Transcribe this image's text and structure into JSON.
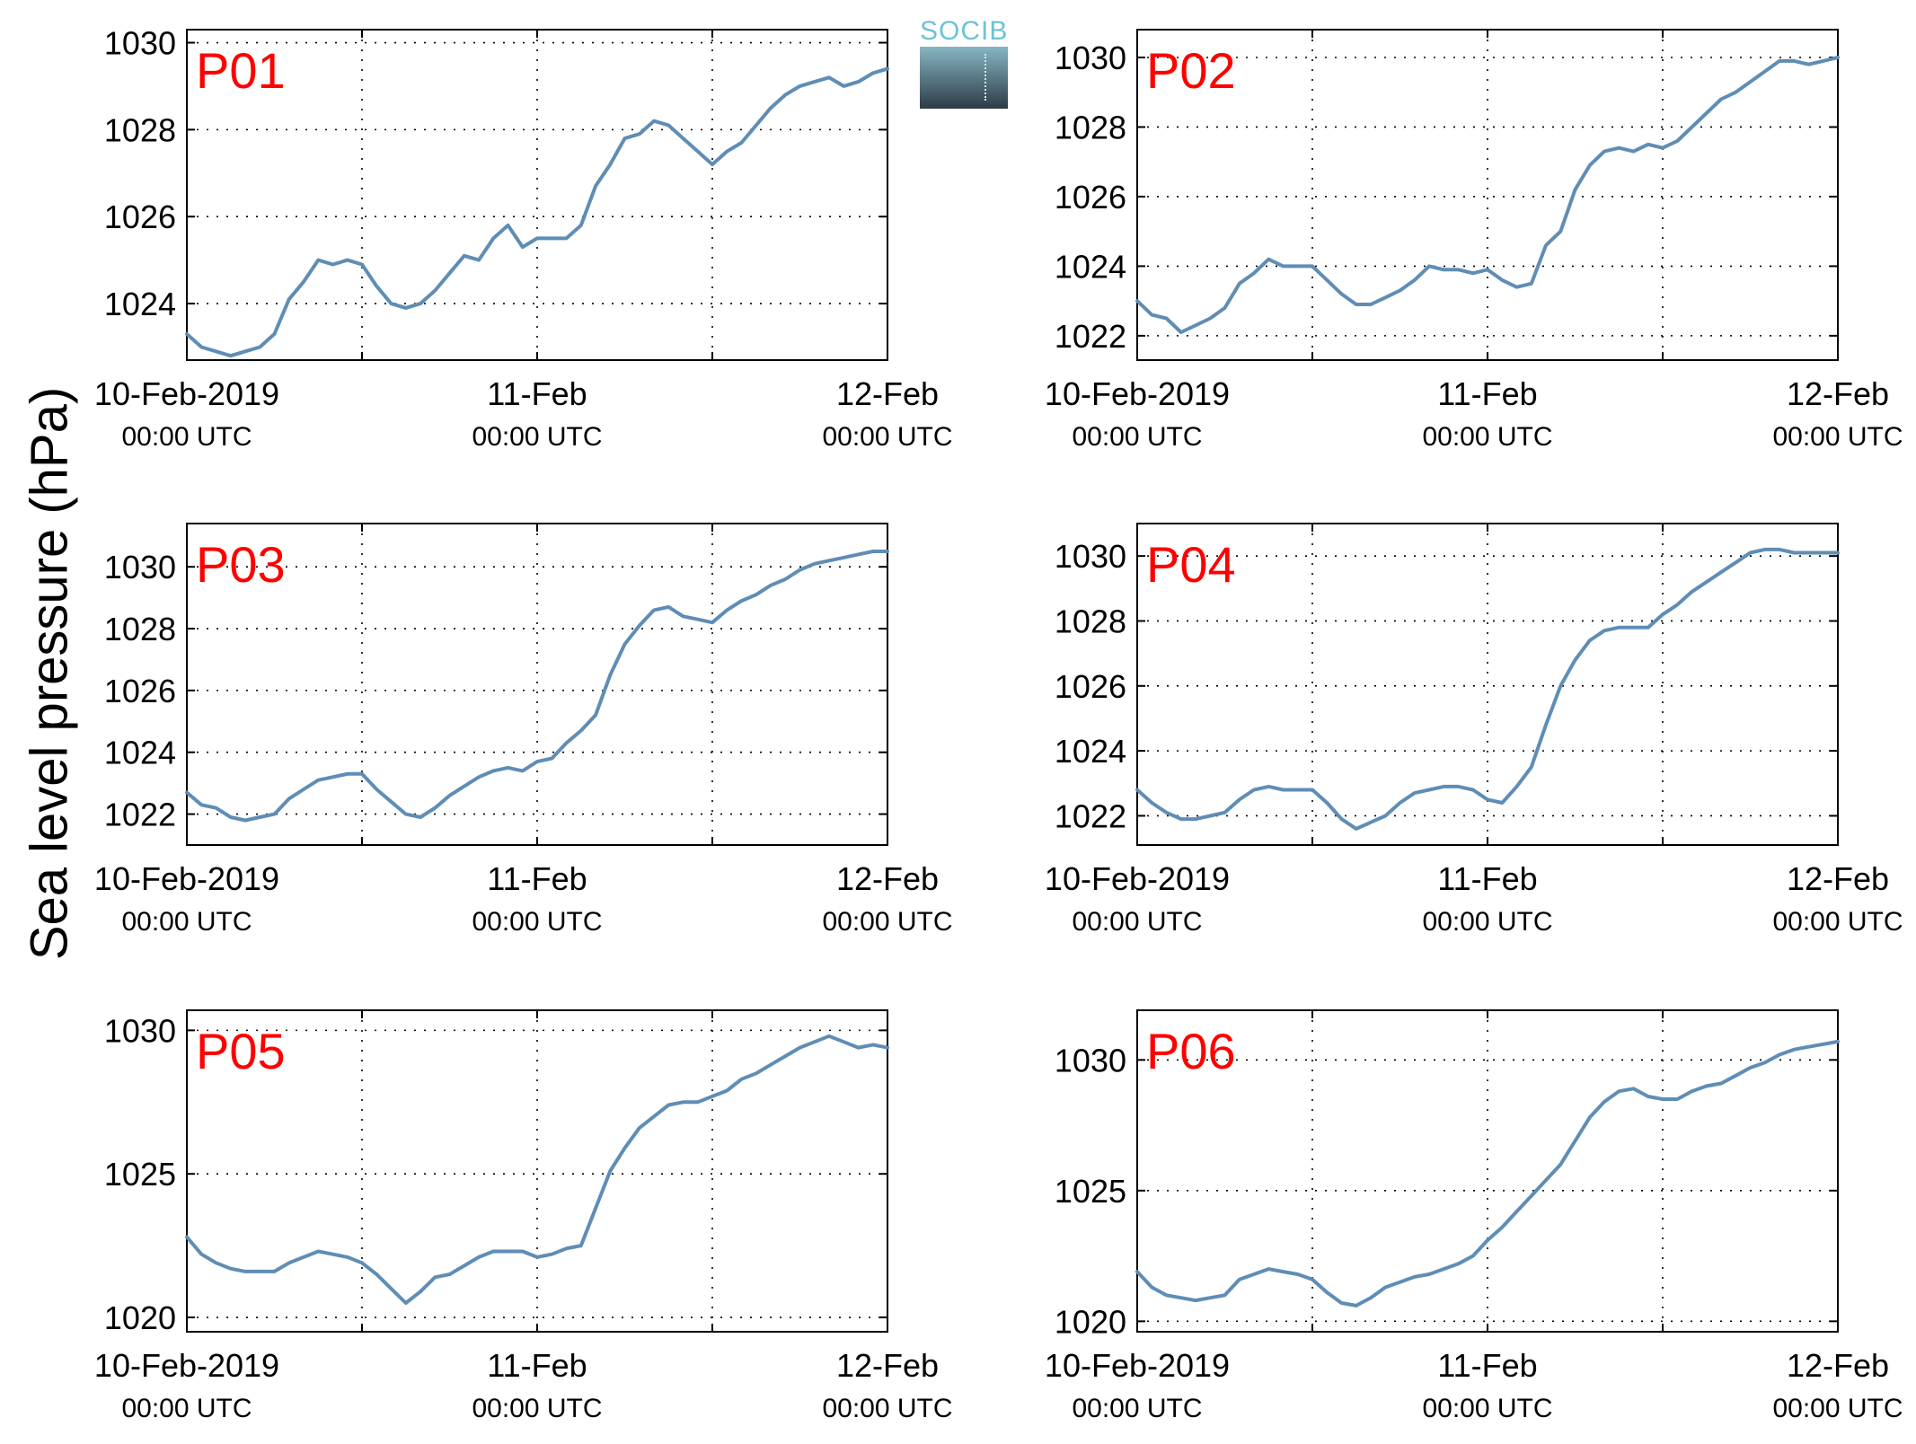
{
  "ylabel": "Sea level pressure (hPa)",
  "logo_text": "SOCIB",
  "x_tick_labels": [
    {
      "line1": "10-Feb-2019",
      "line2": "00:00 UTC"
    },
    {
      "line1": "11-Feb",
      "line2": "00:00 UTC"
    },
    {
      "line1": "12-Feb",
      "line2": "00:00 UTC"
    }
  ],
  "colors": {
    "line": "#5f8db5",
    "panel_label": "#ff0000",
    "grid": "#000000"
  },
  "chart_data": [
    {
      "type": "line",
      "title": "P01",
      "x_unit": "hours since 10-Feb-2019 00:00 UTC",
      "xlim": [
        0,
        48
      ],
      "ylim": [
        1022.7,
        1030.3
      ],
      "yticks": [
        1024,
        1026,
        1028,
        1030
      ],
      "x": [
        0,
        1,
        2,
        3,
        4,
        5,
        6,
        7,
        8,
        9,
        10,
        11,
        12,
        13,
        14,
        15,
        16,
        17,
        18,
        19,
        20,
        21,
        22,
        23,
        24,
        25,
        26,
        27,
        28,
        29,
        30,
        31,
        32,
        33,
        34,
        35,
        36,
        37,
        38,
        39,
        40,
        41,
        42,
        43,
        44,
        45,
        46,
        47,
        48
      ],
      "y": [
        1023.3,
        1023,
        1022.9,
        1022.8,
        1022.9,
        1023,
        1023.3,
        1024.1,
        1024.5,
        1025,
        1024.9,
        1025,
        1024.9,
        1024.4,
        1024,
        1023.9,
        1024,
        1024.3,
        1024.7,
        1025.1,
        1025,
        1025.5,
        1025.8,
        1025.3,
        1025.5,
        1025.5,
        1025.5,
        1025.8,
        1026.7,
        1027.2,
        1027.8,
        1027.9,
        1028.2,
        1028.1,
        1027.8,
        1027.5,
        1027.2,
        1027.5,
        1027.7,
        1028.1,
        1028.5,
        1028.8,
        1029,
        1029.1,
        1029.2,
        1029.0,
        1029.1,
        1029.3,
        1029.4
      ]
    },
    {
      "type": "line",
      "title": "P02",
      "x_unit": "hours since 10-Feb-2019 00:00 UTC",
      "xlim": [
        0,
        48
      ],
      "ylim": [
        1021.3,
        1030.8
      ],
      "yticks": [
        1022,
        1024,
        1026,
        1028,
        1030
      ],
      "x": [
        0,
        1,
        2,
        3,
        4,
        5,
        6,
        7,
        8,
        9,
        10,
        11,
        12,
        13,
        14,
        15,
        16,
        17,
        18,
        19,
        20,
        21,
        22,
        23,
        24,
        25,
        26,
        27,
        28,
        29,
        30,
        31,
        32,
        33,
        34,
        35,
        36,
        37,
        38,
        39,
        40,
        41,
        42,
        43,
        44,
        45,
        46,
        47,
        48
      ],
      "y": [
        1023,
        1022.6,
        1022.5,
        1022.1,
        1022.3,
        1022.5,
        1022.8,
        1023.5,
        1023.8,
        1024.2,
        1024,
        1024,
        1024,
        1023.6,
        1023.2,
        1022.9,
        1022.9,
        1023.1,
        1023.3,
        1023.6,
        1024,
        1023.9,
        1023.9,
        1023.8,
        1023.9,
        1023.6,
        1023.4,
        1023.5,
        1024.6,
        1025.0,
        1026.2,
        1026.9,
        1027.3,
        1027.4,
        1027.3,
        1027.5,
        1027.4,
        1027.6,
        1028,
        1028.4,
        1028.8,
        1029.0,
        1029.3,
        1029.6,
        1029.9,
        1029.9,
        1029.8,
        1029.9,
        1030.0
      ]
    },
    {
      "type": "line",
      "title": "P03",
      "x_unit": "hours since 10-Feb-2019 00:00 UTC",
      "xlim": [
        0,
        48
      ],
      "ylim": [
        1021.0,
        1031.4
      ],
      "yticks": [
        1022,
        1024,
        1026,
        1028,
        1030
      ],
      "x": [
        0,
        1,
        2,
        3,
        4,
        5,
        6,
        7,
        8,
        9,
        10,
        11,
        12,
        13,
        14,
        15,
        16,
        17,
        18,
        19,
        20,
        21,
        22,
        23,
        24,
        25,
        26,
        27,
        28,
        29,
        30,
        31,
        32,
        33,
        34,
        35,
        36,
        37,
        38,
        39,
        40,
        41,
        42,
        43,
        44,
        45,
        46,
        47,
        48
      ],
      "y": [
        1022.7,
        1022.3,
        1022.2,
        1021.9,
        1021.8,
        1021.9,
        1022,
        1022.5,
        1022.8,
        1023.1,
        1023.2,
        1023.3,
        1023.3,
        1022.8,
        1022.4,
        1022,
        1021.9,
        1022.2,
        1022.6,
        1022.9,
        1023.2,
        1023.4,
        1023.5,
        1023.4,
        1023.7,
        1023.8,
        1024.3,
        1024.7,
        1025.2,
        1026.5,
        1027.5,
        1028.1,
        1028.6,
        1028.7,
        1028.4,
        1028.3,
        1028.2,
        1028.6,
        1028.9,
        1029.1,
        1029.4,
        1029.6,
        1029.9,
        1030.1,
        1030.2,
        1030.3,
        1030.4,
        1030.5,
        1030.5
      ]
    },
    {
      "type": "line",
      "title": "P04",
      "x_unit": "hours since 10-Feb-2019 00:00 UTC",
      "xlim": [
        0,
        48
      ],
      "ylim": [
        1021.1,
        1031.0
      ],
      "yticks": [
        1022,
        1024,
        1026,
        1028,
        1030
      ],
      "x": [
        0,
        1,
        2,
        3,
        4,
        5,
        6,
        7,
        8,
        9,
        10,
        11,
        12,
        13,
        14,
        15,
        16,
        17,
        18,
        19,
        20,
        21,
        22,
        23,
        24,
        25,
        26,
        27,
        28,
        29,
        30,
        31,
        32,
        33,
        34,
        35,
        36,
        37,
        38,
        39,
        40,
        41,
        42,
        43,
        44,
        45,
        46,
        47,
        48
      ],
      "y": [
        1022.8,
        1022.4,
        1022.1,
        1021.9,
        1021.9,
        1022,
        1022.1,
        1022.5,
        1022.8,
        1022.9,
        1022.8,
        1022.8,
        1022.8,
        1022.4,
        1021.9,
        1021.6,
        1021.8,
        1022,
        1022.4,
        1022.7,
        1022.8,
        1022.9,
        1022.9,
        1022.8,
        1022.5,
        1022.4,
        1022.9,
        1023.5,
        1024.8,
        1026.0,
        1026.8,
        1027.4,
        1027.7,
        1027.8,
        1027.8,
        1027.8,
        1028.2,
        1028.5,
        1028.9,
        1029.2,
        1029.5,
        1029.8,
        1030.1,
        1030.2,
        1030.2,
        1030.1,
        1030.1,
        1030.1,
        1030.1
      ]
    },
    {
      "type": "line",
      "title": "P05",
      "x_unit": "hours since 10-Feb-2019 00:00 UTC",
      "xlim": [
        0,
        48
      ],
      "ylim": [
        1019.5,
        1030.7
      ],
      "yticks": [
        1020,
        1025,
        1030
      ],
      "x": [
        0,
        1,
        2,
        3,
        4,
        5,
        6,
        7,
        8,
        9,
        10,
        11,
        12,
        13,
        14,
        15,
        16,
        17,
        18,
        19,
        20,
        21,
        22,
        23,
        24,
        25,
        26,
        27,
        28,
        29,
        30,
        31,
        32,
        33,
        34,
        35,
        36,
        37,
        38,
        39,
        40,
        41,
        42,
        43,
        44,
        45,
        46,
        47,
        48
      ],
      "y": [
        1022.8,
        1022.2,
        1021.9,
        1021.7,
        1021.6,
        1021.6,
        1021.6,
        1021.9,
        1022.1,
        1022.3,
        1022.2,
        1022.1,
        1021.9,
        1021.5,
        1021.0,
        1020.5,
        1020.9,
        1021.4,
        1021.5,
        1021.8,
        1022.1,
        1022.3,
        1022.3,
        1022.3,
        1022.1,
        1022.2,
        1022.4,
        1022.5,
        1023.8,
        1025.1,
        1025.9,
        1026.6,
        1027.0,
        1027.4,
        1027.5,
        1027.5,
        1027.7,
        1027.9,
        1028.3,
        1028.5,
        1028.8,
        1029.1,
        1029.4,
        1029.6,
        1029.8,
        1029.6,
        1029.4,
        1029.5,
        1029.4
      ]
    },
    {
      "type": "line",
      "title": "P06",
      "x_unit": "hours since 10-Feb-2019 00:00 UTC",
      "xlim": [
        0,
        48
      ],
      "ylim": [
        1019.6,
        1031.9
      ],
      "yticks": [
        1020,
        1025,
        1030
      ],
      "x": [
        0,
        1,
        2,
        3,
        4,
        5,
        6,
        7,
        8,
        9,
        10,
        11,
        12,
        13,
        14,
        15,
        16,
        17,
        18,
        19,
        20,
        21,
        22,
        23,
        24,
        25,
        26,
        27,
        28,
        29,
        30,
        31,
        32,
        33,
        34,
        35,
        36,
        37,
        38,
        39,
        40,
        41,
        42,
        43,
        44,
        45,
        46,
        47,
        48
      ],
      "y": [
        1021.9,
        1021.3,
        1021,
        1020.9,
        1020.8,
        1020.9,
        1021,
        1021.6,
        1021.8,
        1022.0,
        1021.9,
        1021.8,
        1021.6,
        1021.1,
        1020.7,
        1020.6,
        1020.9,
        1021.3,
        1021.5,
        1021.7,
        1021.8,
        1022.0,
        1022.2,
        1022.5,
        1023.1,
        1023.6,
        1024.2,
        1024.8,
        1025.4,
        1026.0,
        1026.9,
        1027.8,
        1028.4,
        1028.8,
        1028.9,
        1028.6,
        1028.5,
        1028.5,
        1028.8,
        1029.0,
        1029.1,
        1029.4,
        1029.7,
        1029.9,
        1030.2,
        1030.4,
        1030.5,
        1030.6,
        1030.7
      ]
    }
  ]
}
